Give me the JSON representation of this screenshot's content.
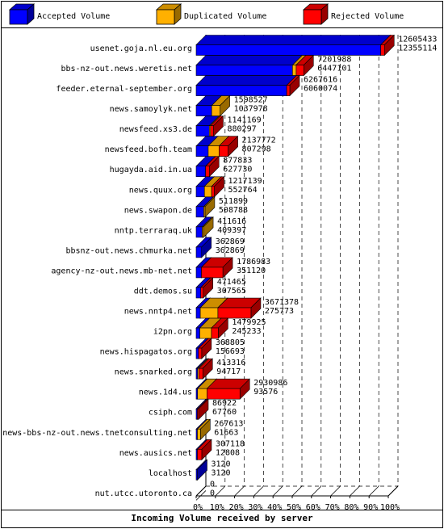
{
  "chart_data": {
    "type": "bar",
    "orientation": "horizontal",
    "stacked": true,
    "style": "3d",
    "title": "Incoming Volume received by server",
    "legend_position": "top",
    "xlim": [
      0,
      100
    ],
    "x_unit": "%",
    "x_ticks": [
      "0%",
      "10%",
      "20%",
      "30%",
      "40%",
      "50%",
      "60%",
      "70%",
      "80%",
      "90%",
      "100%"
    ],
    "gridlines": "vertical dashed",
    "colors": {
      "accepted": "#0000ff",
      "duplicated": "#ffb000",
      "rejected": "#ff0000",
      "frame": "#000000",
      "background": "#ffffff"
    },
    "series": [
      {
        "name": "Accepted Volume",
        "key": "accepted"
      },
      {
        "name": "Duplicated Volume",
        "key": "duplicated"
      },
      {
        "name": "Rejected Volume",
        "key": "rejected"
      }
    ],
    "categories": [
      {
        "server": "usenet.goja.nl.eu.org",
        "total_label": "12605433",
        "accepted_label": "12355114",
        "total": 12605433,
        "accepted": 12355114,
        "duplicated": 0,
        "rejected": 250319
      },
      {
        "server": "bbs-nz-out.news.weretis.net",
        "total_label": "7201988",
        "accepted_label": "6447101",
        "total": 7201988,
        "accepted": 6447101,
        "duplicated": 250000,
        "rejected": 504887
      },
      {
        "server": "feeder.eternal-september.org",
        "total_label": "6267616",
        "accepted_label": "6060074",
        "total": 6267616,
        "accepted": 6060074,
        "duplicated": 0,
        "rejected": 207542
      },
      {
        "server": "news.samoylyk.net",
        "total_label": "1598527",
        "accepted_label": "1037978",
        "total": 1598527,
        "accepted": 1037978,
        "duplicated": 560549,
        "rejected": 0
      },
      {
        "server": "newsfeed.xs3.de",
        "total_label": "1141169",
        "accepted_label": "880297",
        "total": 1141169,
        "accepted": 880297,
        "duplicated": 60000,
        "rejected": 200872
      },
      {
        "server": "newsfeed.bofh.team",
        "total_label": "2137772",
        "accepted_label": "807298",
        "total": 2137772,
        "accepted": 807298,
        "duplicated": 730000,
        "rejected": 600474
      },
      {
        "server": "hugayda.aid.in.ua",
        "total_label": "877833",
        "accepted_label": "627730",
        "total": 877833,
        "accepted": 627730,
        "duplicated": 0,
        "rejected": 250103
      },
      {
        "server": "news.quux.org",
        "total_label": "1217139",
        "accepted_label": "552764",
        "total": 1217139,
        "accepted": 552764,
        "duplicated": 480000,
        "rejected": 184375
      },
      {
        "server": "news.swapon.de",
        "total_label": "511899",
        "accepted_label": "508788",
        "total": 511899,
        "accepted": 508788,
        "duplicated": 3111,
        "rejected": 0
      },
      {
        "server": "nntp.terraraq.uk",
        "total_label": "411616",
        "accepted_label": "409397",
        "total": 411616,
        "accepted": 409397,
        "duplicated": 2219,
        "rejected": 0
      },
      {
        "server": "bbsnz-out.news.chmurka.net",
        "total_label": "362869",
        "accepted_label": "362869",
        "total": 362869,
        "accepted": 362869,
        "duplicated": 0,
        "rejected": 0
      },
      {
        "server": "agency-nz-out.news.mb-net.net",
        "total_label": "1786983",
        "accepted_label": "351120",
        "total": 1786983,
        "accepted": 351120,
        "duplicated": 0,
        "rejected": 1435863
      },
      {
        "server": "ddt.demos.su",
        "total_label": "471465",
        "accepted_label": "307565",
        "total": 471465,
        "accepted": 307565,
        "duplicated": 0,
        "rejected": 163900
      },
      {
        "server": "news.nntp4.net",
        "total_label": "3671378",
        "accepted_label": "275773",
        "total": 3671378,
        "accepted": 275773,
        "duplicated": 1180000,
        "rejected": 2215605
      },
      {
        "server": "i2pn.org",
        "total_label": "1479925",
        "accepted_label": "245233",
        "total": 1479925,
        "accepted": 245233,
        "duplicated": 780000,
        "rejected": 454692
      },
      {
        "server": "news.hispagatos.org",
        "total_label": "368805",
        "accepted_label": "156693",
        "total": 368805,
        "accepted": 156693,
        "duplicated": 0,
        "rejected": 212112
      },
      {
        "server": "news.snarked.org",
        "total_label": "413316",
        "accepted_label": "94717",
        "total": 413316,
        "accepted": 94717,
        "duplicated": 50000,
        "rejected": 268599
      },
      {
        "server": "news.1d4.us",
        "total_label": "2930986",
        "accepted_label": "93576",
        "total": 2930986,
        "accepted": 93576,
        "duplicated": 630000,
        "rejected": 2207410
      },
      {
        "server": "csiph.com",
        "total_label": "86922",
        "accepted_label": "67760",
        "total": 86922,
        "accepted": 67760,
        "duplicated": 0,
        "rejected": 19162
      },
      {
        "server": "news-bbs-nz-out.news.tnetconsulting.net",
        "total_label": "267613",
        "accepted_label": "61663",
        "total": 267613,
        "accepted": 61663,
        "duplicated": 205950,
        "rejected": 0
      },
      {
        "server": "news.ausics.net",
        "total_label": "307118",
        "accepted_label": "12808",
        "total": 307118,
        "accepted": 12808,
        "duplicated": 0,
        "rejected": 294310
      },
      {
        "server": "localhost",
        "total_label": "3120",
        "accepted_label": "3120",
        "total": 3120,
        "accepted": 3120,
        "duplicated": 0,
        "rejected": 0
      },
      {
        "server": "nut.utcc.utoronto.ca",
        "total_label": "0",
        "accepted_label": "0",
        "total": 0,
        "accepted": 0,
        "duplicated": 0,
        "rejected": 0
      }
    ]
  }
}
